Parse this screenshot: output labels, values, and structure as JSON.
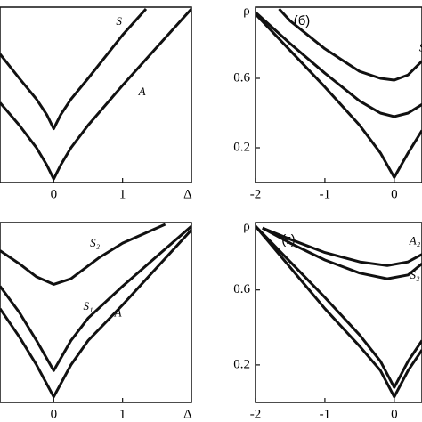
{
  "chart_data": [
    {
      "type": "line",
      "x_label": "Δ",
      "xlim": [
        -0.78,
        2
      ],
      "xticks": [
        0,
        1
      ],
      "ylim": [
        0,
        1
      ],
      "series": [
        {
          "name": "A",
          "color": "#111111",
          "x": [
            -0.78,
            -0.5,
            -0.25,
            -0.1,
            0,
            0.1,
            0.25,
            0.5,
            1,
            1.5,
            2
          ],
          "values": [
            0.46,
            0.33,
            0.2,
            0.1,
            0.02,
            0.1,
            0.2,
            0.33,
            0.56,
            0.78,
            1
          ]
        },
        {
          "name": "S",
          "color": "#111111",
          "x": [
            -0.78,
            -0.5,
            -0.25,
            -0.1,
            0,
            0.1,
            0.25,
            0.5,
            1,
            1.34
          ],
          "values": [
            0.74,
            0.6,
            0.48,
            0.39,
            0.31,
            0.39,
            0.48,
            0.6,
            0.85,
            1
          ]
        }
      ]
    },
    {
      "type": "line",
      "panel_label": "(б)",
      "y_label": "ρ",
      "xlim": [
        -2,
        0.4
      ],
      "xticks": [
        -2,
        -1,
        0
      ],
      "ylim": [
        0,
        1
      ],
      "yticks": [
        0.2,
        0.6
      ],
      "series": [
        {
          "color": "#111111",
          "x": [
            -2,
            -1.5,
            -1,
            -0.5,
            -0.2,
            0,
            0.2,
            0.4
          ],
          "values": [
            0.97,
            0.76,
            0.55,
            0.33,
            0.17,
            0.03,
            0.17,
            0.3
          ]
        },
        {
          "color": "#111111",
          "x": [
            -2,
            -1.5,
            -1,
            -0.5,
            -0.2,
            0,
            0.2,
            0.4
          ],
          "values": [
            0.98,
            0.8,
            0.63,
            0.47,
            0.4,
            0.38,
            0.4,
            0.45
          ]
        },
        {
          "name": "S",
          "color": "#111111",
          "x": [
            -1.66,
            -1.5,
            -1,
            -0.5,
            -0.2,
            0,
            0.2,
            0.4
          ],
          "values": [
            1,
            0.93,
            0.77,
            0.64,
            0.6,
            0.59,
            0.62,
            0.7
          ]
        }
      ]
    },
    {
      "type": "line",
      "x_label": "Δ",
      "xlim": [
        -0.78,
        2
      ],
      "xticks": [
        0,
        1
      ],
      "ylim": [
        0,
        0.95
      ],
      "series": [
        {
          "name": "A",
          "color": "#111111",
          "x": [
            -0.78,
            -0.5,
            -0.25,
            0,
            0.25,
            0.5,
            1,
            1.5,
            2
          ],
          "values": [
            0.5,
            0.35,
            0.2,
            0.03,
            0.2,
            0.33,
            0.52,
            0.72,
            0.92
          ]
        },
        {
          "name": "S₁",
          "color": "#111111",
          "x": [
            -0.78,
            -0.5,
            -0.25,
            0,
            0.25,
            0.5,
            1,
            1.5,
            2
          ],
          "values": [
            0.62,
            0.48,
            0.33,
            0.17,
            0.33,
            0.45,
            0.62,
            0.78,
            0.94
          ]
        },
        {
          "name": "S₂",
          "color": "#111111",
          "x": [
            -0.78,
            -0.5,
            -0.25,
            0,
            0.25,
            0.65,
            1,
            1.62
          ],
          "values": [
            0.81,
            0.74,
            0.67,
            0.63,
            0.66,
            0.77,
            0.85,
            0.95
          ]
        }
      ]
    },
    {
      "type": "line",
      "panel_label": "(г)",
      "y_label": "ρ",
      "xlim": [
        -2,
        0.4
      ],
      "xticks": [
        -2,
        -1,
        0
      ],
      "ylim": [
        0,
        0.95
      ],
      "yticks": [
        0.2,
        0.6
      ],
      "series": [
        {
          "color": "#111111",
          "x": [
            -2,
            -1.5,
            -1,
            -0.5,
            -0.2,
            0,
            0.2,
            0.4
          ],
          "values": [
            0.94,
            0.72,
            0.5,
            0.3,
            0.17,
            0.03,
            0.17,
            0.28
          ]
        },
        {
          "color": "#111111",
          "x": [
            -2,
            -1.5,
            -1,
            -0.5,
            -0.2,
            0,
            0.2,
            0.4
          ],
          "values": [
            0.94,
            0.75,
            0.56,
            0.36,
            0.22,
            0.08,
            0.22,
            0.33
          ]
        },
        {
          "name": "A₂",
          "color": "#111111",
          "x": [
            -1.9,
            -1.5,
            -1,
            -0.5,
            -0.1,
            0.2,
            0.4
          ],
          "values": [
            0.93,
            0.87,
            0.8,
            0.75,
            0.73,
            0.75,
            0.79
          ]
        },
        {
          "name": "S₂",
          "color": "#111111",
          "x": [
            -1.9,
            -1.5,
            -1,
            -0.5,
            -0.1,
            0.2,
            0.4
          ],
          "values": [
            0.93,
            0.85,
            0.76,
            0.69,
            0.66,
            0.68,
            0.74
          ]
        }
      ]
    }
  ]
}
